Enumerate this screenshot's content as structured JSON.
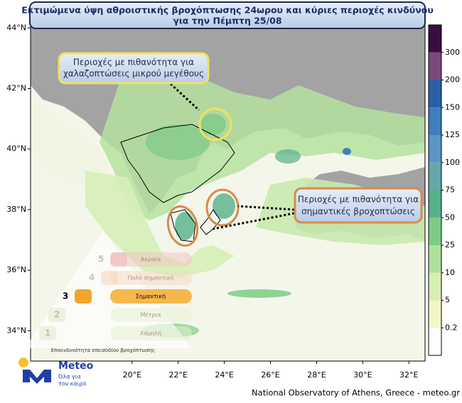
{
  "header": {
    "title_lines": [
      "Εκτιμώμενα ύψη αθροιστικής βροχόπτωσης 24ωρου και κύριες περιοχές κινδύνου",
      "για την Πέμπτη 25/08"
    ]
  },
  "map": {
    "latlim": [
      33.0,
      44.1
    ],
    "lonlim": [
      15.6,
      32.7
    ],
    "lat_ticks": [
      {
        "value": 34,
        "label": "34°N"
      },
      {
        "value": 36,
        "label": "36°N"
      },
      {
        "value": 38,
        "label": "38°N"
      },
      {
        "value": 40,
        "label": "40°N"
      },
      {
        "value": 42,
        "label": "42°N"
      },
      {
        "value": 44,
        "label": "44°N"
      }
    ],
    "lon_ticks": [
      {
        "value": 20,
        "label": "20°E"
      },
      {
        "value": 22,
        "label": "22°E"
      },
      {
        "value": 24,
        "label": "24°E"
      },
      {
        "value": 26,
        "label": "26°E"
      },
      {
        "value": 28,
        "label": "28°E"
      },
      {
        "value": 30,
        "label": "30°E"
      },
      {
        "value": 32,
        "label": "32°E"
      }
    ],
    "annotations": [
      {
        "lines": [
          "Περιοχές με πιθανότητα για",
          "χαλαζοπτώσεις μικρού μεγέθους"
        ],
        "color": "#f2e15c"
      },
      {
        "lines": [
          "Περιοχές με πιθανότητα για",
          "σημαντικές βροχοπτώσεις"
        ],
        "color": "#d9894a"
      }
    ]
  },
  "colorbar": {
    "ticks": [
      0.2,
      5,
      10,
      25,
      50,
      75,
      100,
      125,
      150,
      200,
      300
    ],
    "colors": [
      "#ffffff",
      "#f3f6c6",
      "#d8efb2",
      "#aee29c",
      "#7dcb88",
      "#57b08a",
      "#66a7a9",
      "#5b95c6",
      "#3f7fbb",
      "#2a5fa8",
      "#7b4a7b",
      "#3a0d42"
    ]
  },
  "severity": {
    "levels": [
      {
        "number": "5",
        "label": "Ακραία"
      },
      {
        "number": "4",
        "label": "Πολύ σημαντική"
      },
      {
        "number": "3",
        "label": "Σημαντική"
      },
      {
        "number": "2",
        "label": "Μέτρια"
      },
      {
        "number": "1",
        "label": "Χαμηλή"
      }
    ],
    "caption": "Επικινδυνότητα επεισοδίου βροχόπτωσης"
  },
  "logo": {
    "name": "Meteo",
    "tagline_lines": [
      "Όλα για",
      "τον καιρό"
    ]
  },
  "credit": "National Observatory of Athens, Greece - meteo.gr"
}
